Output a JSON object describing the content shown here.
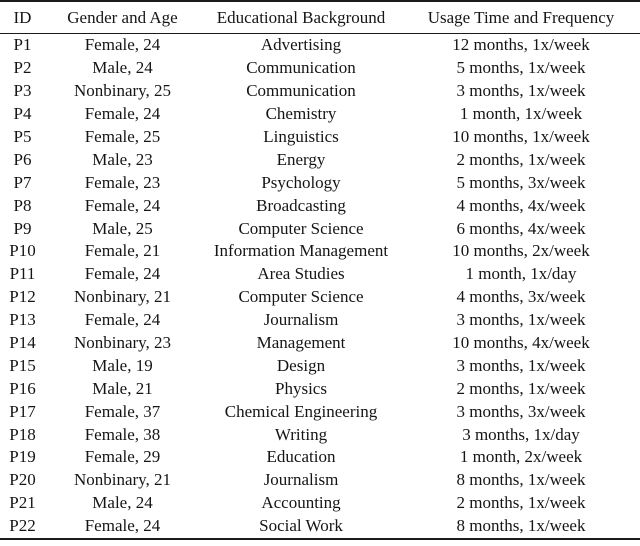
{
  "colors": {
    "background": "#ffffff",
    "text": "#151515",
    "rule": "#1b1b1b"
  },
  "table": {
    "columns": [
      "ID",
      "Gender and Age",
      "Educational Background",
      "Usage Time and Frequency"
    ],
    "rows": [
      [
        "P1",
        "Female, 24",
        "Advertising",
        "12 months, 1x/week"
      ],
      [
        "P2",
        "Male, 24",
        "Communication",
        "5 months, 1x/week"
      ],
      [
        "P3",
        "Nonbinary, 25",
        "Communication",
        "3 months, 1x/week"
      ],
      [
        "P4",
        "Female, 24",
        "Chemistry",
        "1 month, 1x/week"
      ],
      [
        "P5",
        "Female, 25",
        "Linguistics",
        "10 months, 1x/week"
      ],
      [
        "P6",
        "Male, 23",
        "Energy",
        "2 months, 1x/week"
      ],
      [
        "P7",
        "Female, 23",
        "Psychology",
        "5 months, 3x/week"
      ],
      [
        "P8",
        "Female, 24",
        "Broadcasting",
        "4 months, 4x/week"
      ],
      [
        "P9",
        "Male, 25",
        "Computer Science",
        "6 months, 4x/week"
      ],
      [
        "P10",
        "Female, 21",
        "Information Management",
        "10 months, 2x/week"
      ],
      [
        "P11",
        "Female, 24",
        "Area Studies",
        "1 month, 1x/day"
      ],
      [
        "P12",
        "Nonbinary, 21",
        "Computer Science",
        "4 months, 3x/week"
      ],
      [
        "P13",
        "Female, 24",
        "Journalism",
        "3 months, 1x/week"
      ],
      [
        "P14",
        "Nonbinary, 23",
        "Management",
        "10 months, 4x/week"
      ],
      [
        "P15",
        "Male, 19",
        "Design",
        "3 months, 1x/week"
      ],
      [
        "P16",
        "Male, 21",
        "Physics",
        "2 months, 1x/week"
      ],
      [
        "P17",
        "Female, 37",
        "Chemical Engineering",
        "3 months, 3x/week"
      ],
      [
        "P18",
        "Female, 38",
        "Writing",
        "3 months, 1x/day"
      ],
      [
        "P19",
        "Female, 29",
        "Education",
        "1 month, 2x/week"
      ],
      [
        "P20",
        "Nonbinary, 21",
        "Journalism",
        "8 months, 1x/week"
      ],
      [
        "P21",
        "Male, 24",
        "Accounting",
        "2 months, 1x/week"
      ],
      [
        "P22",
        "Female, 24",
        "Social Work",
        "8 months, 1x/week"
      ]
    ]
  }
}
